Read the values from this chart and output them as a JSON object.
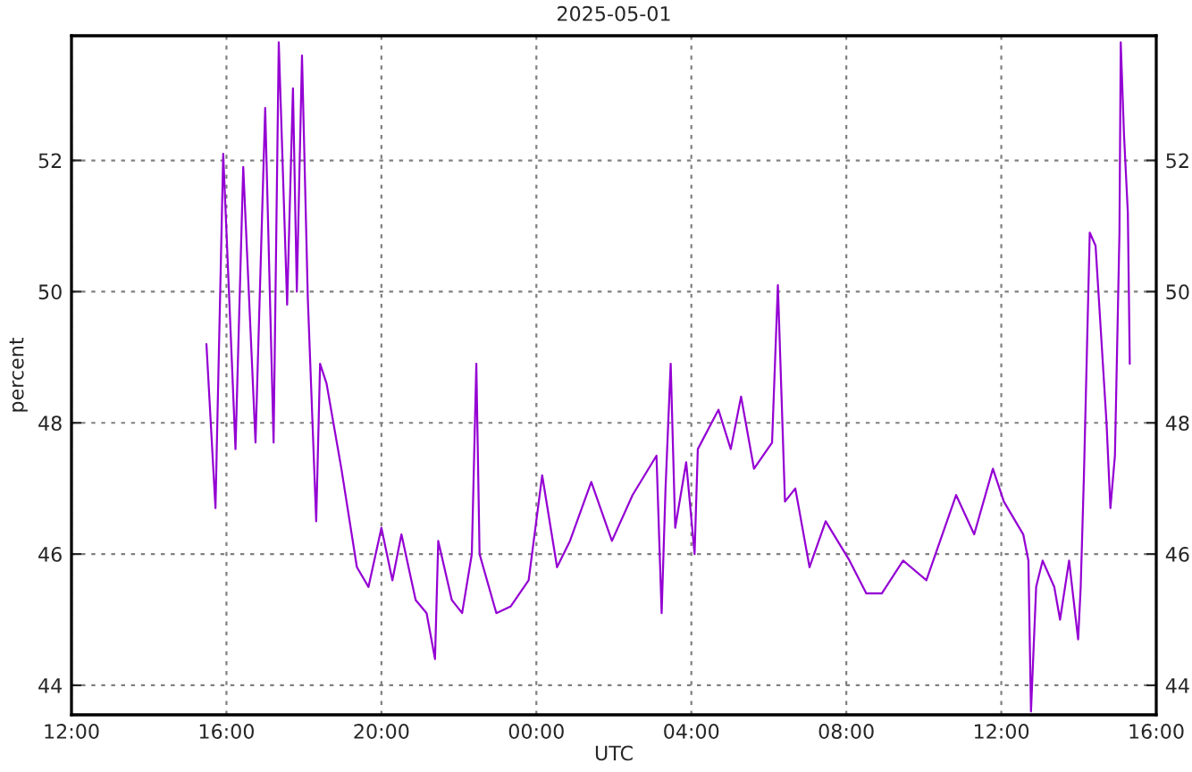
{
  "chart_data": {
    "type": "line",
    "title": "2025-05-01",
    "xlabel": "UTC",
    "ylabel": "percent",
    "x": [
      "2025-05-01T15:29",
      "2025-05-01T15:43",
      "2025-05-01T15:55",
      "2025-05-01T16:14",
      "2025-05-01T16:26",
      "2025-05-01T16:45",
      "2025-05-01T17:00",
      "2025-05-01T17:13",
      "2025-05-01T17:21",
      "2025-05-01T17:34",
      "2025-05-01T17:43",
      "2025-05-01T17:49",
      "2025-05-01T17:57",
      "2025-05-01T18:06",
      "2025-05-01T18:19",
      "2025-05-01T18:25",
      "2025-05-01T18:35",
      "2025-05-01T18:58",
      "2025-05-01T19:22",
      "2025-05-01T19:40",
      "2025-05-01T20:00",
      "2025-05-01T20:17",
      "2025-05-01T20:31",
      "2025-05-01T20:53",
      "2025-05-01T21:10",
      "2025-05-01T21:23",
      "2025-05-01T21:28",
      "2025-05-01T21:49",
      "2025-05-01T22:05",
      "2025-05-01T22:20",
      "2025-05-01T22:27",
      "2025-05-01T22:32",
      "2025-05-01T22:58",
      "2025-05-01T23:20",
      "2025-05-01T23:48",
      "2025-05-02T00:09",
      "2025-05-02T00:32",
      "2025-05-02T00:52",
      "2025-05-02T01:25",
      "2025-05-02T01:57",
      "2025-05-02T02:29",
      "2025-05-02T03:06",
      "2025-05-02T03:14",
      "2025-05-02T03:20",
      "2025-05-02T03:28",
      "2025-05-02T03:35",
      "2025-05-02T03:52",
      "2025-05-02T04:05",
      "2025-05-02T04:10",
      "2025-05-02T04:42",
      "2025-05-02T05:01",
      "2025-05-02T05:17",
      "2025-05-02T05:37",
      "2025-05-02T06:05",
      "2025-05-02T06:14",
      "2025-05-02T06:25",
      "2025-05-02T06:41",
      "2025-05-02T07:03",
      "2025-05-02T07:28",
      "2025-05-02T08:05",
      "2025-05-02T08:31",
      "2025-05-02T08:55",
      "2025-05-02T09:28",
      "2025-05-02T10:04",
      "2025-05-02T10:50",
      "2025-05-02T11:18",
      "2025-05-02T11:47",
      "2025-05-02T12:04",
      "2025-05-02T12:34",
      "2025-05-02T12:42",
      "2025-05-02T12:46",
      "2025-05-02T12:54",
      "2025-05-02T13:04",
      "2025-05-02T13:22",
      "2025-05-02T13:31",
      "2025-05-02T13:45",
      "2025-05-02T13:59",
      "2025-05-02T14:03",
      "2025-05-02T14:08",
      "2025-05-02T14:17",
      "2025-05-02T14:26",
      "2025-05-02T14:43",
      "2025-05-02T14:49",
      "2025-05-02T14:56",
      "2025-05-02T15:03",
      "2025-05-02T15:05",
      "2025-05-02T15:10",
      "2025-05-02T15:16",
      "2025-05-02T15:19"
    ],
    "series": [
      {
        "color": "#9400d3",
        "values": [
          49.2,
          46.7,
          52.1,
          47.6,
          51.9,
          47.7,
          52.8,
          47.7,
          53.8,
          49.8,
          53.1,
          50.0,
          53.6,
          49.9,
          46.5,
          48.9,
          48.6,
          47.3,
          45.8,
          45.5,
          46.4,
          45.6,
          46.3,
          45.3,
          45.1,
          44.4,
          46.2,
          45.3,
          45.1,
          46.0,
          48.9,
          46.0,
          45.1,
          45.2,
          45.6,
          47.2,
          45.8,
          46.2,
          47.1,
          46.2,
          46.9,
          47.5,
          45.1,
          47.0,
          48.9,
          46.4,
          47.4,
          46.0,
          47.6,
          48.2,
          47.6,
          48.4,
          47.3,
          47.7,
          50.1,
          46.8,
          47.0,
          45.8,
          46.5,
          45.9,
          45.4,
          45.4,
          45.9,
          45.6,
          46.9,
          46.3,
          47.3,
          46.8,
          46.3,
          45.9,
          43.6,
          45.5,
          45.9,
          45.5,
          45.0,
          45.9,
          44.7,
          45.5,
          47.2,
          50.9,
          50.7,
          48.0,
          46.7,
          47.5,
          50.9,
          53.8,
          52.4,
          51.2,
          48.9
        ]
      }
    ],
    "xlim": [
      "2025-05-01T12:00",
      "2025-05-02T16:00"
    ],
    "xticks": [
      {
        "value": "2025-05-01T12:00",
        "label": "12:00"
      },
      {
        "value": "2025-05-01T16:00",
        "label": "16:00"
      },
      {
        "value": "2025-05-01T20:00",
        "label": "20:00"
      },
      {
        "value": "2025-05-02T00:00",
        "label": "00:00"
      },
      {
        "value": "2025-05-02T04:00",
        "label": "04:00"
      },
      {
        "value": "2025-05-02T08:00",
        "label": "08:00"
      },
      {
        "value": "2025-05-02T12:00",
        "label": "12:00"
      },
      {
        "value": "2025-05-02T16:00",
        "label": "16:00"
      }
    ],
    "ylim": [
      43.55,
      53.9
    ],
    "yticks": [
      44,
      46,
      48,
      50,
      52
    ],
    "y2lim": [
      43.55,
      53.9
    ],
    "y2ticks": [
      44,
      46,
      48,
      50,
      52
    ],
    "grid": true,
    "line_style": "solid",
    "marker": "none"
  }
}
